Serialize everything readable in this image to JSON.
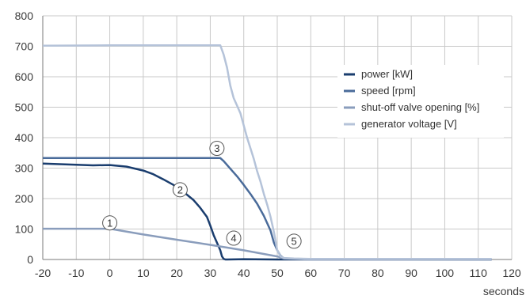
{
  "chart_data": {
    "type": "line",
    "xlabel": "seconds",
    "ylabel": "",
    "xlim": [
      -20,
      120
    ],
    "ylim": [
      0,
      800
    ],
    "xticks": [
      -20,
      -10,
      0,
      10,
      20,
      30,
      40,
      50,
      60,
      70,
      80,
      90,
      100,
      110,
      120
    ],
    "yticks": [
      0,
      100,
      200,
      300,
      400,
      500,
      600,
      700,
      800
    ],
    "grid": true,
    "legend_position": "right",
    "series": [
      {
        "name": "power [kW]",
        "color": "#1a3d6e",
        "x": [
          -20,
          -15,
          -10,
          -5,
          0,
          5,
          10,
          13,
          16,
          19,
          22,
          25,
          27,
          29,
          30,
          31,
          32,
          33,
          33.5,
          34,
          34.5,
          35,
          40,
          50,
          60,
          114
        ],
        "y": [
          315,
          313,
          311,
          309,
          310,
          305,
          292,
          280,
          263,
          245,
          222,
          195,
          170,
          140,
          112,
          80,
          55,
          30,
          10,
          2,
          0,
          0,
          1,
          0,
          0,
          0
        ]
      },
      {
        "name": "speed [rpm]",
        "color": "#4a6b9a",
        "x": [
          -20,
          0,
          20,
          33,
          34,
          36,
          38,
          40,
          42,
          44,
          46,
          48,
          49,
          50,
          51,
          52,
          55,
          60,
          114
        ],
        "y": [
          333,
          333,
          333,
          333,
          323,
          298,
          273,
          245,
          215,
          183,
          143,
          95,
          55,
          30,
          12,
          4,
          2,
          1,
          0
        ]
      },
      {
        "name": "shut-off valve opening [%]",
        "color": "#8a9dbc",
        "x": [
          -20,
          0,
          10,
          20,
          30,
          40,
          50,
          52,
          60,
          114
        ],
        "y": [
          101,
          101,
          82,
          65,
          48,
          30,
          10,
          3,
          0,
          0
        ]
      },
      {
        "name": "generator voltage [V]",
        "color": "#b5c3d9",
        "x": [
          -20,
          0,
          20,
          30,
          33,
          34,
          35,
          36,
          37,
          38,
          39,
          40,
          41,
          42,
          43,
          44,
          45,
          46,
          47,
          48,
          49,
          50,
          51,
          52,
          55,
          60,
          114
        ],
        "y": [
          702,
          703,
          703,
          703,
          703,
          673,
          630,
          570,
          530,
          505,
          480,
          440,
          400,
          365,
          330,
          290,
          255,
          215,
          180,
          140,
          90,
          30,
          10,
          5,
          3,
          2,
          2
        ]
      }
    ],
    "annotations": [
      {
        "label": "1",
        "x": 0,
        "y": 120
      },
      {
        "label": "2",
        "x": 21,
        "y": 229
      },
      {
        "label": "3",
        "x": 32,
        "y": 365
      },
      {
        "label": "4",
        "x": 37,
        "y": 70
      },
      {
        "label": "5",
        "x": 55,
        "y": 60
      }
    ]
  }
}
